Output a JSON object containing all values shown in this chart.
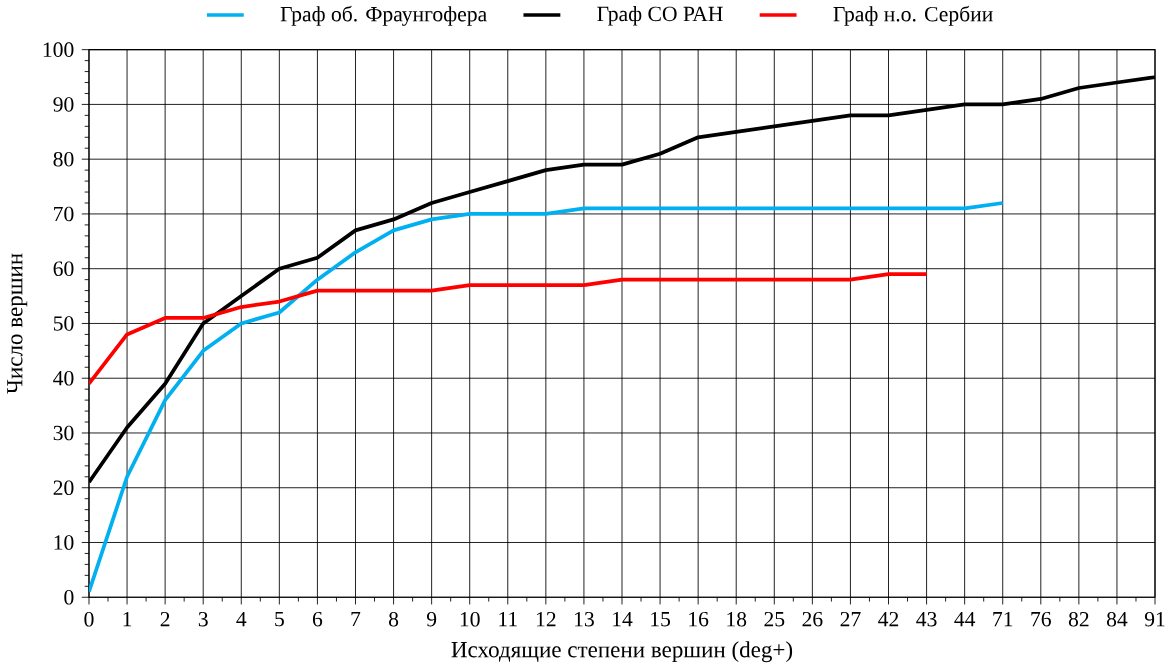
{
  "chart_data": {
    "type": "line",
    "xlabel": "Исходящие степени вершин (deg+)",
    "ylabel": "Число вершин",
    "categories": [
      "0",
      "1",
      "2",
      "3",
      "4",
      "5",
      "6",
      "7",
      "8",
      "9",
      "10",
      "11",
      "12",
      "13",
      "14",
      "15",
      "16",
      "18",
      "25",
      "26",
      "27",
      "42",
      "43",
      "44",
      "71",
      "76",
      "82",
      "84",
      "91"
    ],
    "series": [
      {
        "name": "Граф об. Фраунгофера",
        "color": "#00b0f0",
        "values": [
          1,
          22,
          36,
          45,
          50,
          52,
          58,
          63,
          67,
          69,
          70,
          70,
          70,
          71,
          71,
          71,
          71,
          71,
          71,
          71,
          71,
          71,
          71,
          71,
          72,
          null,
          null,
          null,
          null
        ]
      },
      {
        "name": "Граф СО РАН",
        "color": "#000000",
        "values": [
          21,
          31,
          39,
          50,
          55,
          60,
          62,
          67,
          69,
          72,
          74,
          76,
          78,
          79,
          79,
          81,
          84,
          85,
          86,
          87,
          88,
          88,
          89,
          90,
          90,
          91,
          93,
          94,
          95
        ]
      },
      {
        "name": "Граф н.о. Сербии",
        "color": "#ff0000",
        "values": [
          39,
          48,
          51,
          51,
          53,
          54,
          56,
          56,
          56,
          56,
          57,
          57,
          57,
          57,
          58,
          58,
          58,
          58,
          58,
          58,
          58,
          59,
          59,
          null,
          null,
          null,
          null,
          null,
          null
        ]
      }
    ],
    "ylim": [
      0,
      100
    ],
    "yticks": [
      0,
      10,
      20,
      30,
      40,
      50,
      60,
      70,
      80,
      90,
      100
    ],
    "grid": true,
    "legend": "top",
    "marker": "none",
    "line_style": "solid"
  }
}
